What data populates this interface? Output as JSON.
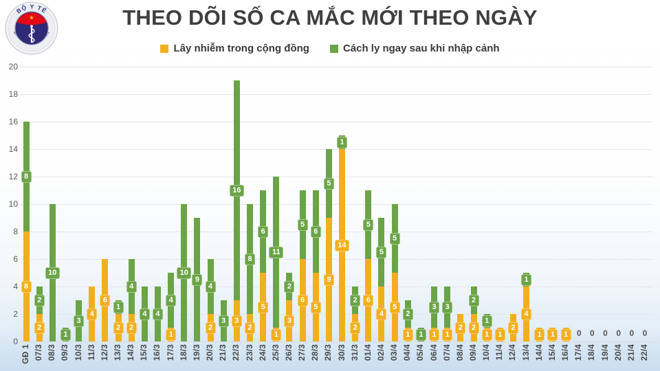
{
  "header": {
    "title": "THEO DÕI SỐ CA MẮC MỚI THEO NGÀY",
    "logo": {
      "top_text": "BỘ Y TẾ",
      "bottom_text": "MINISTRY OF HEALTH"
    }
  },
  "legend": [
    {
      "label": "Lây nhiễm trong cộng đồng",
      "color": "#F2AF1D"
    },
    {
      "label": "Cách ly ngay sau khi nhập cảnh",
      "color": "#6BA447"
    }
  ],
  "chart_data": {
    "type": "bar",
    "stacked": true,
    "title": "THEO DÕI SỐ CA MẮC MỚI THEO NGÀY",
    "categories": [
      "GĐ 1",
      "07/3",
      "08/3",
      "09/3",
      "10/3",
      "11/3",
      "12/3",
      "13/3",
      "14/3",
      "15/3",
      "16/3",
      "17/3",
      "18/3",
      "19/3",
      "20/3",
      "21/3",
      "22/3",
      "23/3",
      "24/3",
      "25/3",
      "26/3",
      "27/3",
      "28/3",
      "29/3",
      "30/3",
      "31/3",
      "01/4",
      "02/4",
      "03/4",
      "04/4",
      "05/4",
      "06/4",
      "07/4",
      "08/4",
      "09/4",
      "10/4",
      "11/4",
      "12/4",
      "13/4",
      "14/4",
      "15/4",
      "16/4",
      "17/4",
      "18/4",
      "19/4",
      "20/4",
      "21/4",
      "22/4"
    ],
    "series": [
      {
        "name": "Lây nhiễm trong cộng đồng",
        "color": "#F2AF1D",
        "values": [
          8,
          2,
          0,
          0,
          0,
          4,
          6,
          2,
          2,
          0,
          0,
          1,
          0,
          0,
          2,
          0,
          3,
          2,
          5,
          1,
          3,
          6,
          5,
          9,
          14,
          2,
          6,
          4,
          5,
          1,
          0,
          1,
          1,
          2,
          2,
          1,
          1,
          2,
          4,
          1,
          1,
          1,
          0,
          0,
          0,
          0,
          0,
          0
        ]
      },
      {
        "name": "Cách ly ngay sau khi nhập cảnh",
        "color": "#6BA447",
        "values": [
          8,
          2,
          10,
          1,
          3,
          0,
          0,
          1,
          4,
          4,
          4,
          4,
          10,
          9,
          4,
          3,
          16,
          8,
          6,
          11,
          2,
          5,
          6,
          5,
          1,
          2,
          5,
          5,
          5,
          2,
          1,
          3,
          3,
          0,
          2,
          1,
          0,
          0,
          1,
          0,
          0,
          0,
          0,
          0,
          0,
          0,
          0,
          0
        ]
      }
    ],
    "ylim": [
      0,
      20
    ],
    "ytick_step": 2,
    "grid": true,
    "legend_position": "top",
    "value_labels": true,
    "zero_label": "0"
  }
}
